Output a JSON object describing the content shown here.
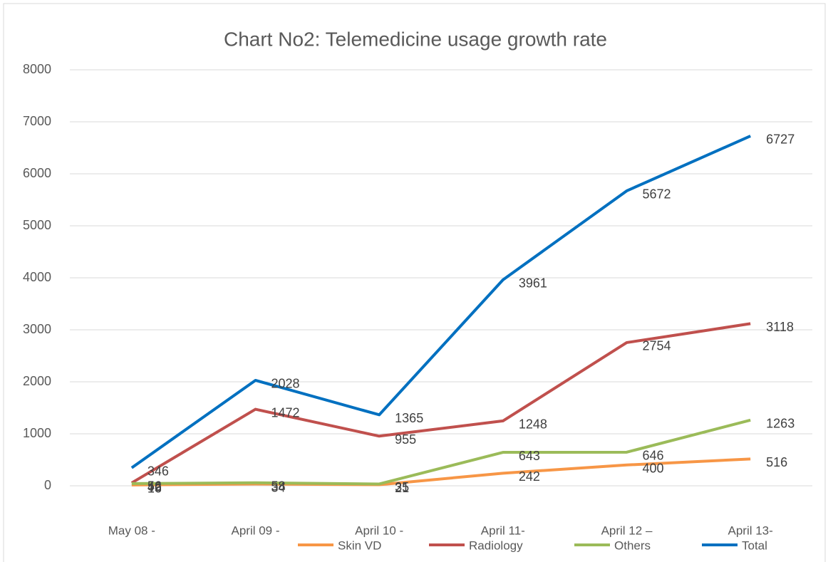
{
  "chart_data": {
    "type": "line",
    "title": "Chart No2: Telemedicine usage growth rate",
    "categories": [
      "May 08 -",
      "April 09 -",
      "April 10 -",
      "April 11-",
      "April 12 –",
      "April 13-"
    ],
    "series": [
      {
        "name": "Skin VD",
        "color": "#f79646",
        "values": [
          16,
          34,
          21,
          242,
          400,
          516
        ]
      },
      {
        "name": "Radiology",
        "color": "#c0504d",
        "values": [
          56,
          1472,
          955,
          1248,
          2754,
          3118
        ]
      },
      {
        "name": "Others",
        "color": "#9bbb59",
        "values": [
          42,
          58,
          35,
          643,
          646,
          1263
        ]
      },
      {
        "name": "Total",
        "color": "#0070c0",
        "values": [
          346,
          2028,
          1365,
          3961,
          5672,
          6727
        ]
      }
    ],
    "ylim": [
      0,
      8000
    ],
    "yticks": [
      0,
      1000,
      2000,
      3000,
      4000,
      5000,
      6000,
      7000,
      8000
    ],
    "grid": true,
    "legend": "bottom"
  }
}
